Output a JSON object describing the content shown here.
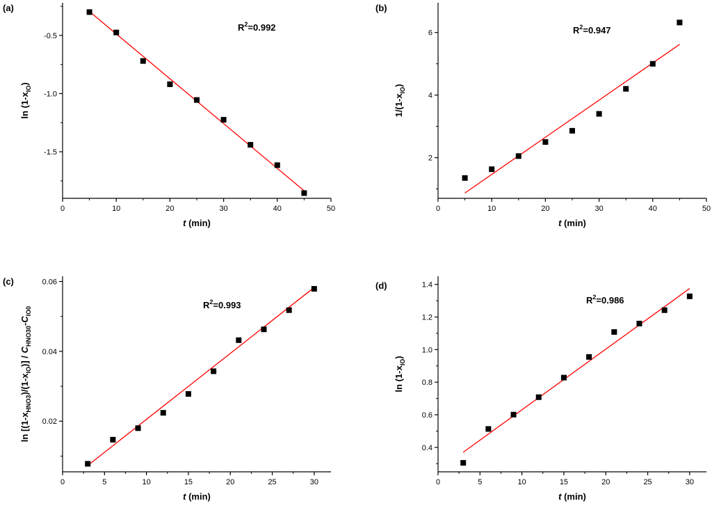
{
  "figure": {
    "colors": {
      "marker": "#000000",
      "fit_line": "#ff0000",
      "axis": "#000000",
      "background": "#ffffff"
    },
    "marker_shape": "square"
  },
  "chart_data": [
    {
      "panel": "(a)",
      "type": "scatter",
      "annotation": "R²=0.992",
      "xlabel_italic": "t",
      "xlabel_rest": " (min)",
      "ylabel_parts": [
        {
          "text": "ln (1-x"
        },
        {
          "text": "IO",
          "sub": true
        },
        {
          "text": ")"
        }
      ],
      "xlim": [
        0,
        50
      ],
      "ylim": [
        -1.9,
        -0.22
      ],
      "xticks": [
        0,
        10,
        20,
        30,
        40,
        50
      ],
      "yticks": [
        -0.5,
        -1.0,
        -1.5
      ],
      "ytick_labels": [
        "-0.5",
        "-1.0",
        "-1.5"
      ],
      "grid": false,
      "series": [
        {
          "x": [
            5,
            10,
            15,
            20,
            25,
            30,
            35,
            40,
            45
          ],
          "y": [
            -0.3,
            -0.475,
            -0.72,
            -0.92,
            -1.055,
            -1.225,
            -1.44,
            -1.615,
            -1.855
          ]
        }
      ],
      "fit_line": {
        "x": [
          5,
          45
        ],
        "y": [
          -0.295,
          -1.835
        ]
      }
    },
    {
      "panel": "(b)",
      "type": "scatter",
      "annotation": "R²=0.947",
      "xlabel_italic": "t",
      "xlabel_rest": " (min)",
      "ylabel_parts": [
        {
          "text": "1/(1-x"
        },
        {
          "text": "IO",
          "sub": true
        },
        {
          "text": ")"
        }
      ],
      "xlim": [
        0,
        50
      ],
      "ylim": [
        0.7,
        6.95
      ],
      "xticks": [
        0,
        10,
        20,
        30,
        40,
        50
      ],
      "yticks": [
        2,
        4,
        6
      ],
      "ytick_labels": [
        "2",
        "4",
        "6"
      ],
      "grid": false,
      "series": [
        {
          "x": [
            5,
            10,
            15,
            20,
            25,
            30,
            35,
            40,
            45
          ],
          "y": [
            1.35,
            1.63,
            2.05,
            2.5,
            2.86,
            3.4,
            4.2,
            5.0,
            6.32
          ]
        }
      ],
      "fit_line": {
        "x": [
          5,
          45
        ],
        "y": [
          0.87,
          5.62
        ]
      }
    },
    {
      "panel": "(c)",
      "type": "scatter",
      "annotation": "R²=0.993",
      "xlabel_italic": "t",
      "xlabel_rest": " (min)",
      "ylabel_parts": [
        {
          "text": "ln [(1-x"
        },
        {
          "text": "HNO3",
          "sub": true
        },
        {
          "text": ")/(1-x"
        },
        {
          "text": "IO",
          "sub": true
        },
        {
          "text": ")] / "
        },
        {
          "text": "C",
          "italic": true
        },
        {
          "text": "HNO30",
          "sub": true
        },
        {
          "text": "-"
        },
        {
          "text": "C",
          "italic": true
        },
        {
          "text": "IO0",
          "sub": true
        }
      ],
      "xlim": [
        0,
        32
      ],
      "ylim": [
        0.0055,
        0.0615
      ],
      "xticks": [
        0,
        5,
        10,
        15,
        20,
        25,
        30
      ],
      "yticks": [
        0.02,
        0.04,
        0.06
      ],
      "ytick_labels": [
        "0.02",
        "0.04",
        "0.06"
      ],
      "grid": false,
      "series": [
        {
          "x": [
            3,
            6,
            9,
            12,
            15,
            18,
            21,
            24,
            27,
            30
          ],
          "y": [
            0.0078,
            0.0147,
            0.018,
            0.0224,
            0.0278,
            0.0343,
            0.0432,
            0.0463,
            0.0518,
            0.0579
          ]
        }
      ],
      "fit_line": {
        "x": [
          3,
          30
        ],
        "y": [
          0.0073,
          0.0583
        ]
      }
    },
    {
      "panel": "(d)",
      "type": "scatter",
      "annotation": "R²=0.986",
      "xlabel_italic": "t",
      "xlabel_rest": " (min)",
      "ylabel_parts": [
        {
          "text": "ln (1-x"
        },
        {
          "text": "IO",
          "sub": true
        },
        {
          "text": ")"
        }
      ],
      "xlim": [
        0,
        32
      ],
      "ylim": [
        0.25,
        1.45
      ],
      "xticks": [
        0,
        5,
        10,
        15,
        20,
        25,
        30
      ],
      "yticks": [
        0.4,
        0.6,
        0.8,
        1.0,
        1.2,
        1.4
      ],
      "ytick_labels": [
        "0.4",
        "0.6",
        "0.8",
        "1.0",
        "1.2",
        "1.4"
      ],
      "grid": false,
      "series": [
        {
          "x": [
            3,
            6,
            9,
            12,
            15,
            18,
            21,
            24,
            27,
            30
          ],
          "y": [
            0.305,
            0.513,
            0.601,
            0.708,
            0.828,
            0.955,
            1.108,
            1.16,
            1.242,
            1.327
          ]
        }
      ],
      "fit_line": {
        "x": [
          3,
          30
        ],
        "y": [
          0.37,
          1.375
        ]
      }
    }
  ]
}
